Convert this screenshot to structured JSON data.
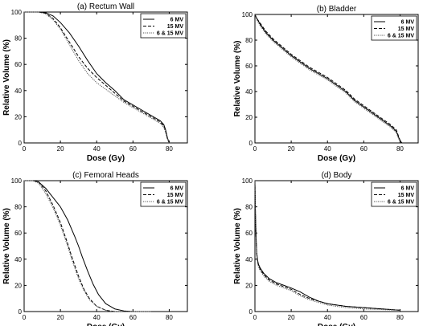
{
  "chart_data": [
    {
      "type": "line",
      "title": "(a) Rectum Wall",
      "xlabel": "Dose (Gy)",
      "ylabel": "Relative Volume (%)",
      "xlim": [
        0,
        90
      ],
      "ylim": [
        0,
        100
      ],
      "xticks": [
        "0",
        "20",
        "40",
        "60",
        "80"
      ],
      "yticks": [
        "0",
        "20",
        "40",
        "60",
        "80",
        "100"
      ],
      "legend_placement": "top-right",
      "series": [
        {
          "name": "6 MV",
          "style": "solid",
          "color": "#000000",
          "x": [
            0,
            8,
            12,
            16,
            20,
            25,
            30,
            35,
            40,
            45,
            50,
            55,
            60,
            65,
            70,
            75,
            77,
            78,
            79,
            80
          ],
          "y": [
            100,
            100,
            99.5,
            97,
            92,
            84,
            74,
            63,
            53,
            46,
            40,
            33,
            29,
            25,
            21,
            17,
            14,
            10,
            4,
            0
          ]
        },
        {
          "name": "15 MV",
          "style": "dashed",
          "color": "#000000",
          "x": [
            0,
            8,
            12,
            16,
            20,
            25,
            30,
            35,
            40,
            45,
            50,
            55,
            60,
            65,
            70,
            75,
            77,
            78,
            79,
            80
          ],
          "y": [
            100,
            100,
            99,
            95,
            88,
            77,
            66,
            57,
            50,
            44,
            38,
            32,
            28,
            24,
            20,
            16,
            13,
            9,
            3,
            0
          ]
        },
        {
          "name": "6 & 15 MV",
          "style": "dotted",
          "color": "#555555",
          "x": [
            0,
            8,
            12,
            16,
            20,
            25,
            30,
            35,
            40,
            45,
            50,
            55,
            60,
            65,
            70,
            75,
            77,
            78,
            79,
            80
          ],
          "y": [
            100,
            100,
            98.5,
            94,
            87,
            75,
            63,
            53,
            46,
            41,
            36,
            31,
            27,
            23,
            19,
            15,
            12,
            8,
            3,
            0
          ]
        }
      ]
    },
    {
      "type": "line",
      "title": "(b) Bladder",
      "xlabel": "Dose (Gy)",
      "ylabel": "Relative Volume (%)",
      "xlim": [
        0,
        90
      ],
      "ylim": [
        0,
        100
      ],
      "xticks": [
        "0",
        "20",
        "40",
        "60",
        "80"
      ],
      "yticks": [
        "0",
        "20",
        "40",
        "60",
        "80",
        "100"
      ],
      "legend_placement": "top-right",
      "series": [
        {
          "name": "6 MV",
          "style": "solid",
          "color": "#000000",
          "x": [
            0,
            1,
            3,
            6,
            10,
            15,
            20,
            25,
            30,
            35,
            40,
            45,
            50,
            55,
            60,
            65,
            70,
            75,
            78,
            79,
            80,
            81
          ],
          "y": [
            100,
            97,
            92,
            86,
            80,
            74,
            68,
            63,
            58,
            54,
            50,
            45,
            40,
            33,
            28,
            23,
            18,
            13,
            9,
            5,
            2,
            0
          ]
        },
        {
          "name": "15 MV",
          "style": "dashed",
          "color": "#000000",
          "x": [
            0,
            1,
            3,
            6,
            10,
            15,
            20,
            25,
            30,
            35,
            40,
            45,
            50,
            55,
            60,
            65,
            70,
            75,
            78,
            79,
            80,
            81
          ],
          "y": [
            100,
            97,
            93,
            87,
            81,
            75,
            69,
            64,
            59,
            55,
            51,
            46,
            41,
            34,
            29,
            24,
            19,
            14,
            10,
            6,
            2,
            0
          ]
        },
        {
          "name": "6 & 15 MV",
          "style": "dotted",
          "color": "#555555",
          "x": [
            0,
            1,
            3,
            6,
            10,
            15,
            20,
            25,
            30,
            35,
            40,
            45,
            50,
            55,
            60,
            65,
            70,
            75,
            78,
            79,
            80,
            81
          ],
          "y": [
            100,
            96,
            91,
            85,
            79,
            73,
            67,
            62,
            57,
            53,
            49,
            44,
            39,
            32,
            27,
            22,
            17,
            12,
            8,
            4,
            1,
            0
          ]
        }
      ]
    },
    {
      "type": "line",
      "title": "(c) Femoral Heads",
      "xlabel": "Dose (Gy)",
      "ylabel": "Relative Volume (%)",
      "xlim": [
        0,
        90
      ],
      "ylim": [
        0,
        100
      ],
      "xticks": [
        "0",
        "20",
        "40",
        "60",
        "80"
      ],
      "yticks": [
        "0",
        "20",
        "40",
        "60",
        "80",
        "100"
      ],
      "legend_placement": "top-right",
      "series": [
        {
          "name": "6 MV",
          "style": "solid",
          "color": "#000000",
          "x": [
            0,
            5,
            8,
            12,
            16,
            20,
            24,
            28,
            30,
            32,
            35,
            38,
            41,
            45,
            50,
            55,
            60,
            65,
            70
          ],
          "y": [
            100,
            100,
            99,
            94,
            87,
            80,
            70,
            57,
            50,
            42,
            31,
            21,
            13,
            6,
            2,
            0.5,
            0,
            0,
            0
          ]
        },
        {
          "name": "15 MV",
          "style": "dashed",
          "color": "#000000",
          "x": [
            0,
            5,
            8,
            12,
            16,
            20,
            24,
            26,
            28,
            30,
            33,
            36,
            40,
            45,
            50,
            55,
            60,
            65,
            70
          ],
          "y": [
            100,
            100,
            99,
            92,
            81,
            68,
            52,
            43,
            35,
            27,
            17,
            10,
            4,
            1,
            0,
            0,
            0,
            0,
            0
          ]
        },
        {
          "name": "6 & 15 MV",
          "style": "dotted",
          "color": "#555555",
          "x": [
            0,
            5,
            8,
            12,
            16,
            20,
            24,
            26,
            28,
            30,
            33,
            36,
            40,
            45,
            50,
            55,
            60,
            65,
            70
          ],
          "y": [
            100,
            100,
            98,
            90,
            79,
            66,
            50,
            41,
            33,
            25,
            16,
            9,
            4,
            1,
            0,
            0,
            0,
            0,
            0
          ]
        }
      ]
    },
    {
      "type": "line",
      "title": "(d) Body",
      "xlabel": "Dose (Gy)",
      "ylabel": "Relative Volume (%)",
      "xlim": [
        0,
        90
      ],
      "ylim": [
        0,
        100
      ],
      "xticks": [
        "0",
        "20",
        "40",
        "60",
        "80"
      ],
      "yticks": [
        "0",
        "20",
        "40",
        "60",
        "80",
        "100"
      ],
      "legend_placement": "top-right",
      "series": [
        {
          "name": "6 MV",
          "style": "solid",
          "color": "#000000",
          "x": [
            0,
            0.3,
            0.7,
            1,
            1.5,
            2,
            3,
            5,
            8,
            12,
            16,
            20,
            25,
            30,
            35,
            40,
            50,
            60,
            70,
            80
          ],
          "y": [
            100,
            75,
            55,
            45,
            39,
            36,
            33,
            29,
            25,
            22,
            20,
            18,
            15,
            11,
            8,
            6,
            4,
            3,
            2,
            1
          ]
        },
        {
          "name": "15 MV",
          "style": "dashed",
          "color": "#000000",
          "x": [
            0,
            0.3,
            0.7,
            1,
            1.5,
            2,
            3,
            5,
            8,
            12,
            16,
            20,
            25,
            30,
            35,
            40,
            50,
            60,
            70,
            80
          ],
          "y": [
            100,
            72,
            53,
            44,
            38,
            35,
            32,
            28,
            24,
            21,
            19,
            17,
            13,
            10,
            8,
            6,
            4,
            3,
            2,
            1
          ]
        },
        {
          "name": "6 & 15 MV",
          "style": "dotted",
          "color": "#555555",
          "x": [
            0,
            0.3,
            0.7,
            1,
            1.5,
            2,
            3,
            5,
            8,
            12,
            16,
            20,
            25,
            30,
            35,
            40,
            50,
            60,
            70,
            80
          ],
          "y": [
            100,
            70,
            52,
            43,
            37,
            34,
            31,
            27,
            23,
            20,
            18,
            16,
            12,
            9,
            7,
            5,
            3,
            2,
            1.5,
            1
          ]
        }
      ]
    }
  ]
}
